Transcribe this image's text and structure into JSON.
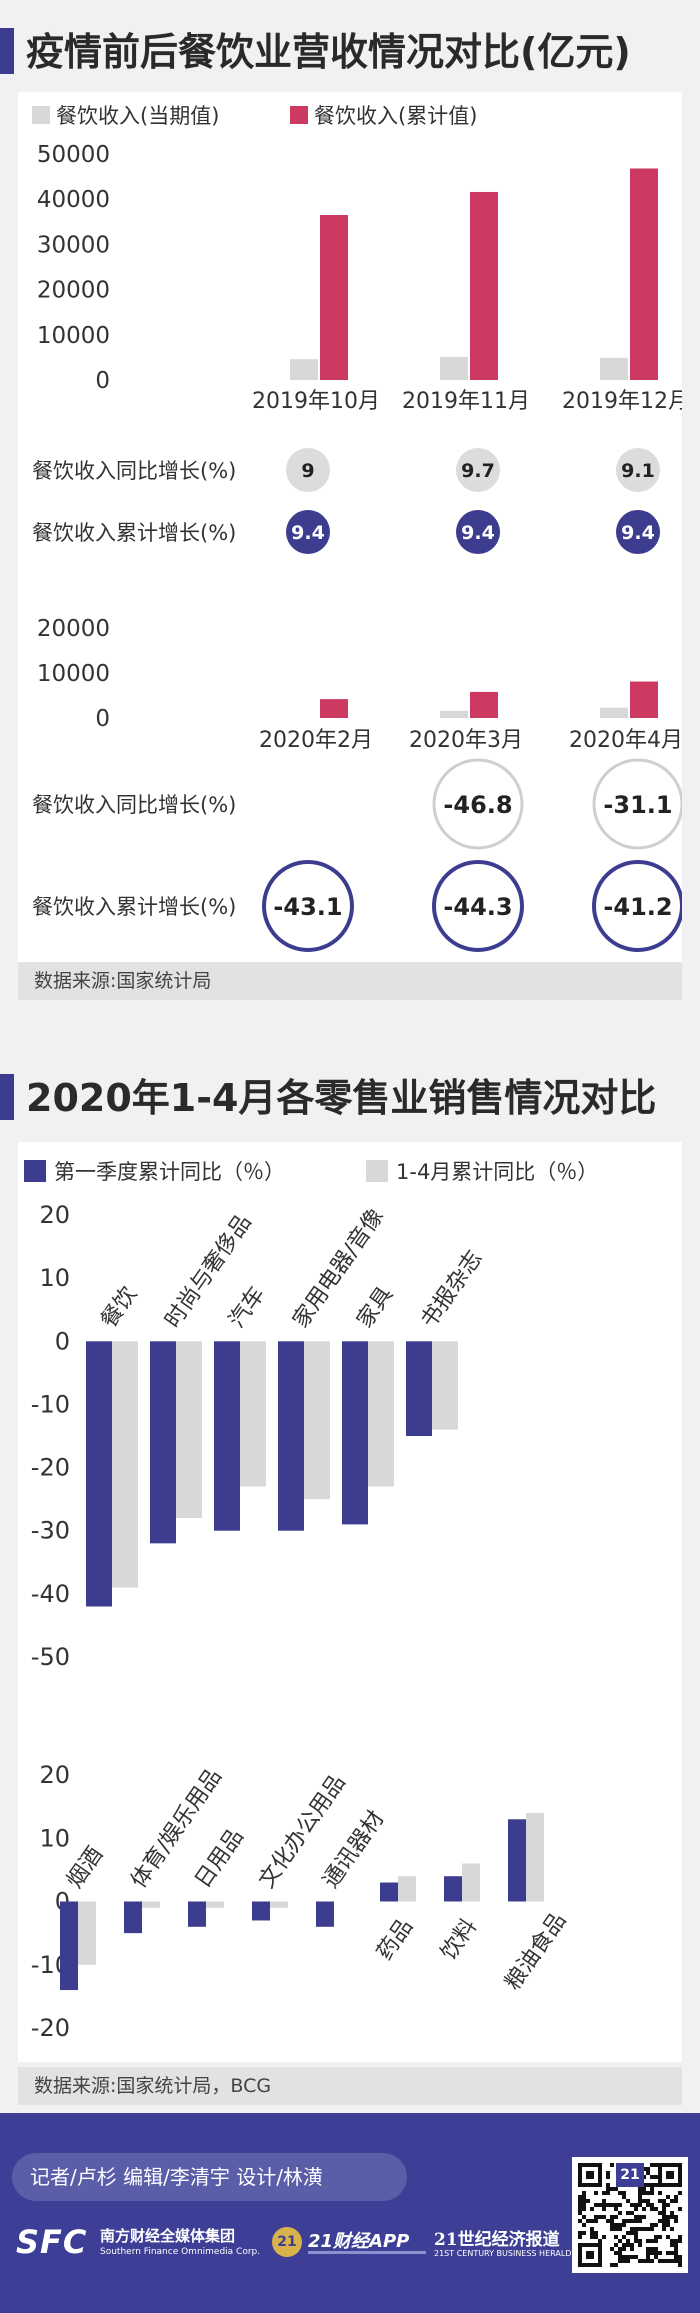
{
  "section1": {
    "title": "疫情前后餐饮业营收情况对比(亿元)",
    "source": "数据来源:国家统计局"
  },
  "section2": {
    "title": "2020年1-4月各零售业销售情况对比",
    "source": "数据来源:国家统计局，BCG"
  },
  "colors": {
    "navy": "#3d3d8f",
    "crimson": "#cc3a62",
    "gray": "#d8d8d8",
    "footer": "#3c3f95"
  },
  "chart_data": [
    {
      "type": "bar",
      "series": [
        {
          "name": "餐饮收入(当期值)",
          "values": [
            4600,
            5100,
            4900
          ]
        },
        {
          "name": "餐饮收入(累计值)",
          "values": [
            36500,
            41600,
            46800
          ]
        }
      ],
      "categories": [
        "2019年10月",
        "2019年11月",
        "2019年12月"
      ],
      "ylim": [
        0,
        50000
      ],
      "yticks": [
        "50000",
        "40000",
        "30000",
        "20000",
        "10000",
        "0"
      ],
      "legend": "top-left",
      "rows": [
        {
          "label": "餐饮收入同比增长(%)",
          "values": [
            "9",
            "9.7",
            "9.1"
          ]
        },
        {
          "label": "餐饮收入累计增长(%)",
          "values": [
            "9.4",
            "9.4",
            "9.4"
          ]
        }
      ]
    },
    {
      "type": "bar",
      "series": [
        {
          "name": "餐饮收入(当期值)",
          "values": [
            null,
            1600,
            2300
          ]
        },
        {
          "name": "餐饮收入(累计值)",
          "values": [
            4200,
            5800,
            8100
          ]
        }
      ],
      "categories": [
        "2020年2月",
        "2020年3月",
        "2020年4月"
      ],
      "ylim": [
        0,
        20000
      ],
      "yticks": [
        "20000",
        "10000",
        "0"
      ],
      "rows": [
        {
          "label": "餐饮收入同比增长(%)",
          "values": [
            "",
            "-46.8",
            "-31.1"
          ]
        },
        {
          "label": "餐饮收入累计增长(%)",
          "values": [
            "-43.1",
            "-44.3",
            "-41.2"
          ]
        }
      ]
    },
    {
      "type": "bar",
      "legend": "top",
      "series": [
        {
          "name": "第一季度累计同比（％）",
          "values": [
            -42,
            -32,
            -30,
            -30,
            -29,
            -15
          ]
        },
        {
          "name": "1-4月累计同比（％）",
          "values": [
            -39,
            -28,
            -23,
            -25,
            -23,
            -14
          ]
        }
      ],
      "categories": [
        "餐饮",
        "时尚与奢侈品",
        "汽车",
        "家用电器/音像",
        "家具",
        "书报杂志"
      ],
      "ylim": [
        -50,
        20
      ],
      "yticks": [
        "20",
        "10",
        "0",
        "-10",
        "-20",
        "-30",
        "-40",
        "-50"
      ]
    },
    {
      "type": "bar",
      "series": [
        {
          "name": "第一季度累计同比（％）",
          "values": [
            -14,
            -5,
            -4,
            -3,
            -4,
            3,
            4,
            13
          ]
        },
        {
          "name": "1-4月累计同比（％）",
          "values": [
            -10,
            -1,
            -1,
            -1,
            0,
            4,
            6,
            14
          ]
        }
      ],
      "categories": [
        "烟酒",
        "体育/娱乐用品",
        "日用品",
        "文化办公用品",
        "通讯器材",
        "药品",
        "饮料",
        "粮油食品"
      ],
      "ylim": [
        -20,
        20
      ],
      "yticks": [
        "20",
        "10",
        "0",
        "-10",
        "-20"
      ]
    }
  ],
  "footer": {
    "credits": "记者/卢杉   编辑/李清宇   设计/林潢",
    "logo1_mark": "SFC",
    "logo1_name": "南方财经全媒体集团",
    "logo1_en": "Southern Finance Omnimedia Corp.",
    "logo2_mark": "21",
    "logo2_name": "21财经APP",
    "logo3_name": "21世纪经济报道",
    "logo3_en": "21ST CENTURY BUSINESS HERALD",
    "qr_badge": "21"
  }
}
